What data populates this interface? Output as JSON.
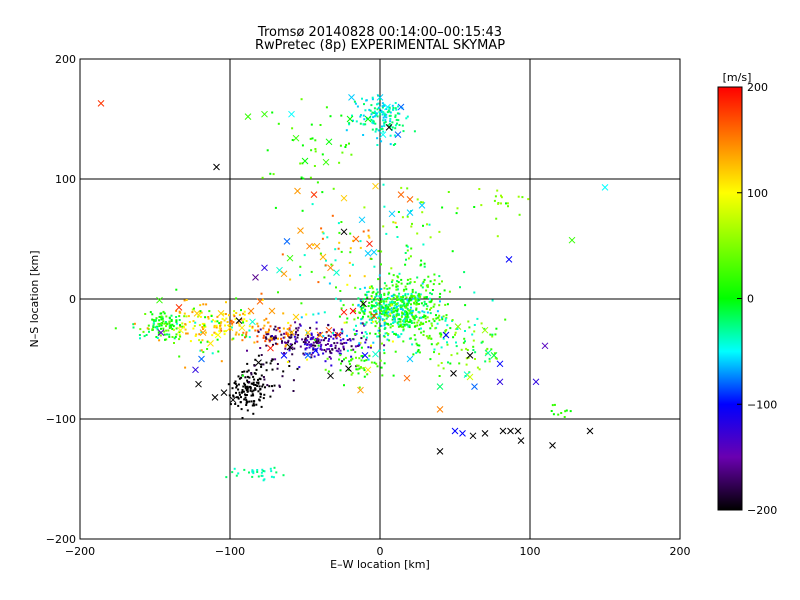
{
  "chart_data": [
    {
      "type": "scatter",
      "title": "Tromsø 20140828 00:14:00–00:15:43",
      "subtitle": "RwPretec (8p) EXPERIMENTAL SKYMAP",
      "xlabel": "E–W location [km]",
      "ylabel": "N–S location [km]",
      "xlim": [
        -200,
        200
      ],
      "ylim": [
        -200,
        200
      ],
      "xticks": [
        -200,
        -100,
        0,
        100,
        200
      ],
      "yticks": [
        -200,
        -100,
        0,
        100,
        200
      ],
      "grid": true,
      "marker_legend": "dots = small points, x = crosses; color encodes velocity [m/s]",
      "colorbar": {
        "label": "[m/s]",
        "range": [
          -200,
          200
        ],
        "ticks": [
          200,
          100,
          0,
          -100,
          -200
        ]
      },
      "series": [
        {
          "marker": "cross",
          "points": [
            [
              -186,
              163,
              180
            ],
            [
              -109,
              110,
              -200
            ],
            [
              -55,
              90,
              140
            ],
            [
              -53,
              57,
              140
            ],
            [
              -47,
              44,
              150
            ],
            [
              -42,
              44,
              140
            ],
            [
              -38,
              35,
              130
            ],
            [
              -33,
              26,
              150
            ],
            [
              -24,
              56,
              -200
            ],
            [
              -16,
              50,
              160
            ],
            [
              -7,
              46,
              190
            ],
            [
              -62,
              48,
              -80
            ],
            [
              -67,
              24,
              -40
            ],
            [
              -64,
              21,
              140
            ],
            [
              -83,
              18,
              -160
            ],
            [
              -77,
              26,
              -120
            ],
            [
              -60,
              34,
              20
            ],
            [
              -44,
              87,
              180
            ],
            [
              -24,
              84,
              120
            ],
            [
              -88,
              152,
              20
            ],
            [
              -77,
              154,
              20
            ],
            [
              -56,
              134,
              20
            ],
            [
              -50,
              115,
              0
            ],
            [
              -34,
              131,
              0
            ],
            [
              -20,
              150,
              0
            ],
            [
              -8,
              150,
              0
            ],
            [
              0,
              168,
              -60
            ],
            [
              -19,
              168,
              -60
            ],
            [
              5,
              160,
              -50
            ],
            [
              14,
              160,
              -80
            ],
            [
              12,
              137,
              -80
            ],
            [
              2,
              137,
              -50
            ],
            [
              -59,
              154,
              -50
            ],
            [
              -36,
              114,
              20
            ],
            [
              -29,
              22,
              -40
            ],
            [
              -12,
              66,
              -60
            ],
            [
              -8,
              38,
              -60
            ],
            [
              -4,
              39,
              -60
            ],
            [
              8,
              71,
              -60
            ],
            [
              20,
              72,
              -60
            ],
            [
              28,
              78,
              -60
            ],
            [
              14,
              87,
              160
            ],
            [
              20,
              83,
              160
            ],
            [
              -3,
              94,
              120
            ],
            [
              -147,
              -1,
              20
            ],
            [
              -146,
              -28,
              -140
            ],
            [
              -134,
              -7,
              180
            ],
            [
              -133,
              -26,
              100
            ],
            [
              -122,
              -12,
              120
            ],
            [
              -118,
              -28,
              140
            ],
            [
              -106,
              -12,
              120
            ],
            [
              -100,
              -24,
              110
            ],
            [
              -92,
              -24,
              110
            ],
            [
              -86,
              -10,
              150
            ],
            [
              -80,
              -2,
              160
            ],
            [
              -72,
              -10,
              140
            ],
            [
              -59,
              -28,
              120
            ],
            [
              -56,
              -15,
              120
            ],
            [
              -48,
              -28,
              120
            ],
            [
              -43,
              -43,
              -100
            ],
            [
              -40,
              -30,
              150
            ],
            [
              -34,
              -26,
              170
            ],
            [
              -28,
              -30,
              180
            ],
            [
              -24,
              -11,
              190
            ],
            [
              -18,
              -10,
              200
            ],
            [
              -11,
              -4,
              -200
            ],
            [
              -4,
              -14,
              180
            ],
            [
              -60,
              -40,
              -200
            ],
            [
              -73,
              -41,
              190
            ],
            [
              -85,
              -19,
              -40
            ],
            [
              -94,
              -18,
              -200
            ],
            [
              -108,
              -30,
              100
            ],
            [
              -113,
              -37,
              110
            ],
            [
              -119,
              -50,
              -80
            ],
            [
              -123,
              -59,
              -120
            ],
            [
              -121,
              -71,
              -200
            ],
            [
              -110,
              -82,
              -200
            ],
            [
              -98,
              -84,
              -200
            ],
            [
              -104,
              -78,
              -200
            ],
            [
              -81,
              -53,
              -200
            ],
            [
              -64,
              -47,
              -100
            ],
            [
              -48,
              -47,
              -80
            ],
            [
              -33,
              -64,
              -200
            ],
            [
              -21,
              -58,
              -200
            ],
            [
              -13,
              -76,
              140
            ],
            [
              -10,
              -47,
              -100
            ],
            [
              -8,
              -59,
              110
            ],
            [
              -3,
              -46,
              -40
            ],
            [
              18,
              -66,
              160
            ],
            [
              20,
              -50,
              -60
            ],
            [
              40,
              -92,
              150
            ],
            [
              40,
              -73,
              -20
            ],
            [
              49,
              -62,
              -200
            ],
            [
              58,
              -63,
              -40
            ],
            [
              60,
              -65,
              80
            ],
            [
              63,
              -73,
              -80
            ],
            [
              72,
              -45,
              -30
            ],
            [
              76,
              -47,
              -10
            ],
            [
              80,
              -54,
              -100
            ],
            [
              80,
              -69,
              -120
            ],
            [
              104,
              -69,
              -120
            ],
            [
              110,
              -39,
              -140
            ],
            [
              128,
              49,
              20
            ],
            [
              150,
              93,
              -50
            ],
            [
              86,
              33,
              -100
            ],
            [
              60,
              -47,
              -200
            ],
            [
              44,
              -30,
              -100
            ],
            [
              52,
              -23,
              50
            ],
            [
              70,
              -26,
              60
            ],
            [
              40,
              -127,
              -200
            ],
            [
              50,
              -110,
              -100
            ],
            [
              55,
              -112,
              -100
            ],
            [
              62,
              -114,
              -200
            ],
            [
              70,
              -112,
              -200
            ],
            [
              82,
              -110,
              -200
            ],
            [
              87,
              -110,
              -200
            ],
            [
              92,
              -110,
              -200
            ],
            [
              94,
              -118,
              -200
            ],
            [
              115,
              -122,
              -200
            ],
            [
              140,
              -110,
              -200
            ],
            [
              6,
              143,
              -200
            ]
          ]
        },
        {
          "marker": "dot",
          "clusters": [
            {
              "cx": 8,
              "cy": -8,
              "sx": 12,
              "sy": 10,
              "n": 400,
              "vals": [
                -40,
                -20,
                0,
                20,
                40,
                -60
              ]
            },
            {
              "cx": 25,
              "cy": 0,
              "sx": 10,
              "sy": 14,
              "n": 140,
              "vals": [
                20,
                0,
                40,
                -20
              ]
            },
            {
              "cx": 30,
              "cy": -25,
              "sx": 18,
              "sy": 12,
              "n": 100,
              "vals": [
                0,
                20,
                -40,
                50
              ]
            },
            {
              "cx": 0,
              "cy": 152,
              "sx": 10,
              "sy": 9,
              "n": 140,
              "vals": [
                -40,
                -60,
                -20
              ]
            },
            {
              "cx": -145,
              "cy": -22,
              "sx": 7,
              "sy": 6,
              "n": 100,
              "vals": [
                20,
                0,
                40,
                -20
              ]
            },
            {
              "cx": -120,
              "cy": -18,
              "sx": 10,
              "sy": 8,
              "n": 60,
              "vals": [
                120,
                100,
                80,
                140
              ]
            },
            {
              "cx": -98,
              "cy": -20,
              "sx": 8,
              "sy": 8,
              "n": 40,
              "vals": [
                100,
                120,
                160
              ]
            },
            {
              "cx": -73,
              "cy": -28,
              "sx": 10,
              "sy": 5,
              "n": 60,
              "vals": [
                150,
                170,
                130
              ]
            },
            {
              "cx": -37,
              "cy": -38,
              "sx": 15,
              "sy": 7,
              "n": 160,
              "vals": [
                -160,
                -140,
                -180,
                -120
              ]
            },
            {
              "cx": -62,
              "cy": -32,
              "sx": 9,
              "sy": 6,
              "n": 60,
              "vals": [
                -160,
                -180
              ]
            },
            {
              "cx": -88,
              "cy": -76,
              "sx": 6,
              "sy": 8,
              "n": 120,
              "vals": [
                -200
              ]
            },
            {
              "cx": -75,
              "cy": -62,
              "sx": 10,
              "sy": 10,
              "n": 40,
              "vals": [
                -200,
                -180
              ]
            },
            {
              "cx": -82,
              "cy": -145,
              "sx": 8,
              "sy": 3,
              "n": 30,
              "vals": [
                -40,
                -20
              ]
            },
            {
              "cx": -15,
              "cy": -55,
              "sx": 10,
              "sy": 8,
              "n": 50,
              "vals": [
                0,
                20,
                40
              ]
            },
            {
              "cx": 62,
              "cy": -45,
              "sx": 12,
              "sy": 10,
              "n": 50,
              "vals": [
                20,
                40,
                60,
                -20
              ]
            },
            {
              "cx": -45,
              "cy": 120,
              "sx": 20,
              "sy": 20,
              "n": 40,
              "vals": [
                20,
                0,
                40
              ]
            },
            {
              "cx": 20,
              "cy": 70,
              "sx": 16,
              "sy": 18,
              "n": 40,
              "vals": [
                0,
                40,
                60,
                -40
              ]
            },
            {
              "cx": -30,
              "cy": 40,
              "sx": 22,
              "sy": 20,
              "n": 50,
              "vals": [
                160,
                120,
                -40,
                20
              ]
            },
            {
              "cx": 85,
              "cy": 80,
              "sx": 12,
              "sy": 12,
              "n": 20,
              "vals": [
                40,
                60,
                0
              ]
            },
            {
              "cx": 120,
              "cy": -93,
              "sx": 4,
              "sy": 3,
              "n": 10,
              "vals": [
                20,
                0
              ]
            },
            {
              "cx": -120,
              "cy": -25,
              "sx": 25,
              "sy": 15,
              "n": 60,
              "vals": [
                20,
                0,
                140,
                -40
              ]
            },
            {
              "cx": -10,
              "cy": -20,
              "sx": 25,
              "sy": 20,
              "n": 80,
              "vals": [
                -60,
                -40,
                20,
                100
              ]
            }
          ]
        }
      ]
    }
  ]
}
